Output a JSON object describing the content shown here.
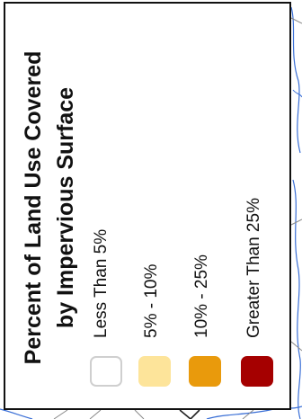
{
  "legend": {
    "title_line_1": "Percent of Land Use Covered",
    "title_line_2": "by Impervious Surface",
    "items": [
      {
        "label": "Less Than 5%",
        "color": "#ffffff",
        "border": "#cfcfcf"
      },
      {
        "label": "5% - 10%",
        "color": "#fde49a",
        "border": "#fde49a"
      },
      {
        "label": "10% - 25%",
        "color": "#e99a0c",
        "border": "#e99a0c"
      },
      {
        "label": "Greater Than 25%",
        "color": "#a50000",
        "border": "#a50000"
      }
    ]
  },
  "map": {
    "line_color": "#3a6fd6",
    "road_color": "#777777"
  }
}
